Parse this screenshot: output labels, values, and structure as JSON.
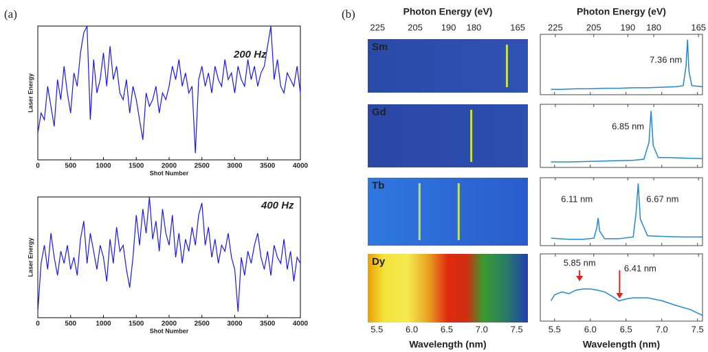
{
  "panel_labels": [
    "(a)",
    "(b)"
  ],
  "chart_data": [
    {
      "type": "line",
      "annotation": "200 Hz",
      "xlabel": "Shot Number",
      "ylabel": "Laser Energy",
      "xlim": [
        0,
        4000
      ],
      "xticks": [
        0,
        500,
        1000,
        1500,
        2000,
        2500,
        3000,
        3500,
        4000
      ],
      "ylim": [
        0,
        1
      ],
      "series": [
        {
          "color": "#1414ff",
          "x": [
            0,
            50,
            100,
            150,
            200,
            250,
            300,
            350,
            400,
            450,
            500,
            550,
            600,
            650,
            700,
            750,
            800,
            850,
            900,
            950,
            1000,
            1050,
            1100,
            1150,
            1200,
            1250,
            1300,
            1350,
            1400,
            1450,
            1500,
            1550,
            1600,
            1650,
            1700,
            1750,
            1800,
            1850,
            1900,
            1950,
            2000,
            2050,
            2100,
            2150,
            2200,
            2250,
            2300,
            2350,
            2400,
            2450,
            2500,
            2550,
            2600,
            2650,
            2700,
            2750,
            2800,
            2850,
            2900,
            2950,
            3000,
            3050,
            3100,
            3150,
            3200,
            3250,
            3300,
            3350,
            3400,
            3450,
            3500,
            3550,
            3600,
            3650,
            3700,
            3750,
            3800,
            3850,
            3900,
            3950,
            4000
          ],
          "values": [
            0.2,
            0.35,
            0.3,
            0.55,
            0.4,
            0.25,
            0.6,
            0.45,
            0.7,
            0.5,
            0.35,
            0.65,
            0.55,
            0.8,
            0.95,
            1.0,
            0.3,
            0.75,
            0.5,
            0.6,
            0.8,
            0.55,
            0.85,
            0.6,
            0.7,
            0.5,
            0.45,
            0.6,
            0.35,
            0.55,
            0.45,
            0.3,
            0.15,
            0.5,
            0.4,
            0.45,
            0.55,
            0.35,
            0.5,
            0.45,
            0.55,
            0.7,
            0.6,
            0.75,
            0.55,
            0.65,
            0.5,
            0.55,
            0.05,
            0.6,
            0.7,
            0.55,
            0.65,
            0.5,
            0.7,
            0.6,
            0.55,
            0.75,
            0.6,
            0.65,
            0.5,
            0.7,
            0.6,
            0.55,
            0.75,
            0.6,
            0.7,
            0.55,
            0.65,
            0.7,
            0.85,
            1.0,
            0.6,
            0.75,
            0.55,
            0.5,
            0.65,
            0.6,
            0.55,
            0.7,
            0.5
          ]
        }
      ]
    },
    {
      "type": "line",
      "annotation": "400 Hz",
      "xlabel": "Shot Number",
      "ylabel": "Laser Energy",
      "xlim": [
        0,
        4000
      ],
      "xticks": [
        0,
        500,
        1000,
        1500,
        2000,
        2500,
        3000,
        3500,
        4000
      ],
      "ylim": [
        0,
        1
      ],
      "series": [
        {
          "color": "#1414ff",
          "x": [
            0,
            50,
            100,
            150,
            200,
            250,
            300,
            350,
            400,
            450,
            500,
            550,
            600,
            650,
            700,
            750,
            800,
            850,
            900,
            950,
            1000,
            1050,
            1100,
            1150,
            1200,
            1250,
            1300,
            1350,
            1400,
            1450,
            1500,
            1550,
            1600,
            1650,
            1700,
            1750,
            1800,
            1850,
            1900,
            1950,
            2000,
            2050,
            2100,
            2150,
            2200,
            2250,
            2300,
            2350,
            2400,
            2450,
            2500,
            2550,
            2600,
            2650,
            2700,
            2750,
            2800,
            2850,
            2900,
            2950,
            3000,
            3050,
            3100,
            3150,
            3200,
            3250,
            3300,
            3350,
            3400,
            3450,
            3500,
            3550,
            3600,
            3650,
            3700,
            3750,
            3800,
            3850,
            3900,
            3950,
            4000
          ],
          "values": [
            0.05,
            0.45,
            0.6,
            0.4,
            0.7,
            0.5,
            0.35,
            0.55,
            0.45,
            0.6,
            0.4,
            0.5,
            0.35,
            0.65,
            0.8,
            0.45,
            0.7,
            0.55,
            0.4,
            0.6,
            0.5,
            0.3,
            0.65,
            0.45,
            0.75,
            0.55,
            0.6,
            0.4,
            0.25,
            0.5,
            0.85,
            0.6,
            0.9,
            0.7,
            1.0,
            0.65,
            0.8,
            0.55,
            0.9,
            0.7,
            0.6,
            0.85,
            0.5,
            0.7,
            0.45,
            0.65,
            0.55,
            0.75,
            0.6,
            0.85,
            0.95,
            0.6,
            0.75,
            0.5,
            0.65,
            0.45,
            0.6,
            0.55,
            0.7,
            0.5,
            0.4,
            0.05,
            0.5,
            0.35,
            0.55,
            0.45,
            0.6,
            0.7,
            0.5,
            0.4,
            0.55,
            0.35,
            0.6,
            0.5,
            0.45,
            0.65,
            0.4,
            0.55,
            0.3,
            0.5,
            0.45
          ]
        }
      ]
    },
    {
      "type": "spectra",
      "x2label": "Photon Energy (eV)",
      "x2ticks": [
        225,
        205,
        190,
        180,
        165
      ],
      "xlabel": "Wavelength (nm)",
      "xticks": [
        5.5,
        {
          "value": 6,
          "label": "6.0"
        },
        6.5,
        {
          "value": 7,
          "label": "7.0"
        },
        7.5
      ],
      "image_xlim": [
        5.37,
        7.66
      ],
      "xlim": [
        5.3,
        7.57
      ],
      "ylim": [
        0,
        1.05
      ],
      "series": [
        {
          "name": "Sm",
          "color": "#1e88d8",
          "x": [
            5.45,
            5.6,
            5.8,
            6.0,
            6.2,
            6.4,
            6.6,
            6.8,
            7.0,
            7.2,
            7.3,
            7.34,
            7.36,
            7.38,
            7.42,
            7.5,
            7.57
          ],
          "values": [
            0.05,
            0.05,
            0.06,
            0.06,
            0.07,
            0.07,
            0.08,
            0.08,
            0.09,
            0.1,
            0.12,
            0.5,
            1.0,
            0.4,
            0.12,
            0.11,
            0.1
          ],
          "annotations": [
            {
              "value": 7.36,
              "label": "7.36 nm"
            }
          ]
        },
        {
          "name": "Gd",
          "color": "#1e88d8",
          "x": [
            5.45,
            5.7,
            6.0,
            6.3,
            6.6,
            6.75,
            6.82,
            6.85,
            6.88,
            6.95,
            7.1,
            7.3,
            7.57
          ],
          "values": [
            0.05,
            0.05,
            0.06,
            0.07,
            0.08,
            0.1,
            0.4,
            0.98,
            0.35,
            0.13,
            0.13,
            0.12,
            0.11
          ],
          "annotations": [
            {
              "value": 6.85,
              "label": "6.85 nm"
            }
          ]
        },
        {
          "name": "Tb",
          "color": "#1e88d8",
          "x": [
            5.45,
            5.7,
            5.9,
            6.05,
            6.09,
            6.11,
            6.13,
            6.2,
            6.4,
            6.6,
            6.64,
            6.67,
            6.7,
            6.8,
            7.0,
            7.3,
            7.57
          ],
          "values": [
            0.08,
            0.06,
            0.06,
            0.08,
            0.25,
            0.42,
            0.2,
            0.07,
            0.07,
            0.1,
            0.5,
            1.0,
            0.4,
            0.12,
            0.11,
            0.1,
            0.1
          ],
          "annotations": [
            {
              "value": 6.11,
              "label": "6.11 nm"
            },
            {
              "value": 6.67,
              "label": "6.67 nm"
            }
          ]
        },
        {
          "name": "Dy",
          "color": "#1e88d8",
          "marker": "arrow",
          "marker_color": "#e02020",
          "x": [
            5.45,
            5.5,
            5.6,
            5.7,
            5.8,
            5.9,
            6.0,
            6.1,
            6.2,
            6.3,
            6.4,
            6.5,
            6.6,
            6.8,
            7.0,
            7.2,
            7.4,
            7.57
          ],
          "values": [
            0.3,
            0.4,
            0.45,
            0.42,
            0.48,
            0.5,
            0.5,
            0.48,
            0.45,
            0.38,
            0.3,
            0.33,
            0.35,
            0.35,
            0.3,
            0.22,
            0.15,
            0.05
          ],
          "annotations": [
            {
              "value": 5.85,
              "label": "5.85 nm"
            },
            {
              "value": 6.41,
              "label": "6.41 nm"
            }
          ]
        }
      ]
    }
  ]
}
